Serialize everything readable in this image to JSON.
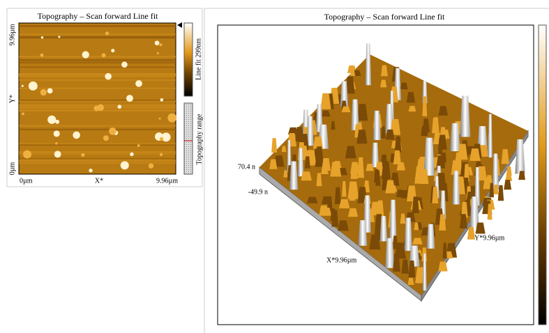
{
  "left": {
    "title": "Topography – Scan forward    Line fit",
    "y_top": "9.96µm",
    "y_label": "Y*",
    "y_bottom": "0µm",
    "x_left": "0µm",
    "x_label": "X*",
    "x_right": "9.96µm",
    "colorbar_label": "Line fit  299nm",
    "range_label": "Topography range"
  },
  "right": {
    "title": "Topography – Scan forward   Line fit",
    "z_max": "70.4 n",
    "z_min": "-49.9 n",
    "x_label": "X*9.96µm",
    "y_label": "Y*9.96µm"
  }
}
